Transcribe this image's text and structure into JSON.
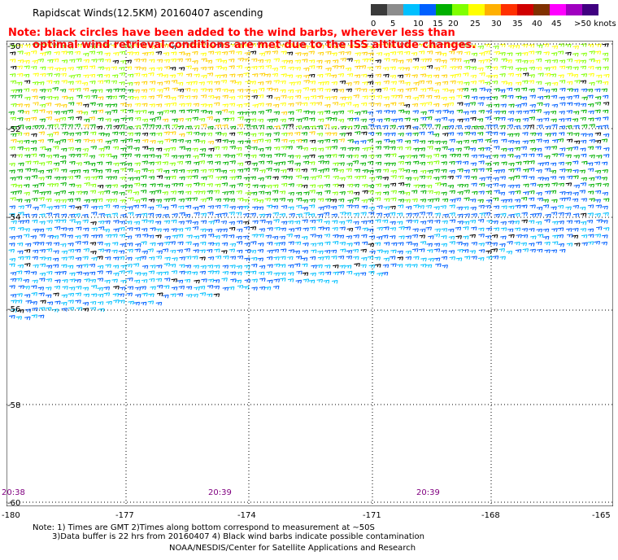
{
  "title": "Rapidscat Winds(12.5KM) 20160407 ascending",
  "legend": {
    "colors": [
      "#3a3a3a",
      "#8c8c8c",
      "#00c0ff",
      "#0060ff",
      "#00b000",
      "#80ff00",
      "#ffff00",
      "#ffb000",
      "#ff3000",
      "#d00000",
      "#803000",
      "#ff00ff",
      "#a000c0",
      "#400080"
    ],
    "ticks": [
      "0",
      "5",
      "10",
      "15",
      "20",
      "25",
      "30",
      "35",
      "40",
      "45",
      ">50 knots"
    ]
  },
  "notes": [
    "Note: black circles have been added to the wind barbs, wherever less than",
    "optimal wind retrieval conditions are met due to the ISS altitude changes."
  ],
  "y_axis_labels": [
    "-50",
    "-52",
    "-54",
    "-56",
    "-58",
    "-60"
  ],
  "x_axis_labels": [
    "-180",
    "-177",
    "-174",
    "-171",
    "-168",
    "-165"
  ],
  "time_labels": [
    "20:38",
    "20:39",
    "20:39"
  ],
  "footer": {
    "line1": "Note: 1) Times are GMT 2)Times along bottom correspond to measurement at ~50S",
    "line2": "3)Data buffer is 22 hrs from 20160407 4) Black wind barbs indicate possible contamination",
    "credit": "NOAA/NESDIS/Center for Satellite Applications and Research"
  },
  "map_data": {
    "type": "wind-barb-map",
    "lon_range": [
      -180,
      -165
    ],
    "lat_range": [
      -60,
      -50
    ],
    "units": "knots"
  }
}
